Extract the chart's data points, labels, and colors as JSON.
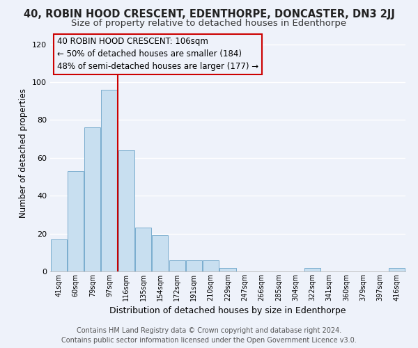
{
  "title": "40, ROBIN HOOD CRESCENT, EDENTHORPE, DONCASTER, DN3 2JJ",
  "subtitle": "Size of property relative to detached houses in Edenthorpe",
  "xlabel": "Distribution of detached houses by size in Edenthorpe",
  "ylabel": "Number of detached properties",
  "categories": [
    "41sqm",
    "60sqm",
    "79sqm",
    "97sqm",
    "116sqm",
    "135sqm",
    "154sqm",
    "172sqm",
    "191sqm",
    "210sqm",
    "229sqm",
    "247sqm",
    "266sqm",
    "285sqm",
    "304sqm",
    "322sqm",
    "341sqm",
    "360sqm",
    "379sqm",
    "397sqm",
    "416sqm"
  ],
  "values": [
    17,
    53,
    76,
    96,
    64,
    23,
    19,
    6,
    6,
    6,
    2,
    0,
    0,
    0,
    0,
    2,
    0,
    0,
    0,
    0,
    2
  ],
  "bar_color": "#c8dff0",
  "bar_edge_color": "#7aadce",
  "vline_bar_index": 3,
  "vline_color": "#cc0000",
  "ylim": [
    0,
    125
  ],
  "yticks": [
    0,
    20,
    40,
    60,
    80,
    100,
    120
  ],
  "annotation_title": "40 ROBIN HOOD CRESCENT: 106sqm",
  "annotation_line1": "← 50% of detached houses are smaller (184)",
  "annotation_line2": "48% of semi-detached houses are larger (177) →",
  "footer_line1": "Contains HM Land Registry data © Crown copyright and database right 2024.",
  "footer_line2": "Contains public sector information licensed under the Open Government Licence v3.0.",
  "background_color": "#eef2fa",
  "grid_color": "#ffffff",
  "title_fontsize": 10.5,
  "subtitle_fontsize": 9.5,
  "xlabel_fontsize": 9,
  "ylabel_fontsize": 8.5,
  "footer_fontsize": 7,
  "ann_fontsize": 8.5
}
